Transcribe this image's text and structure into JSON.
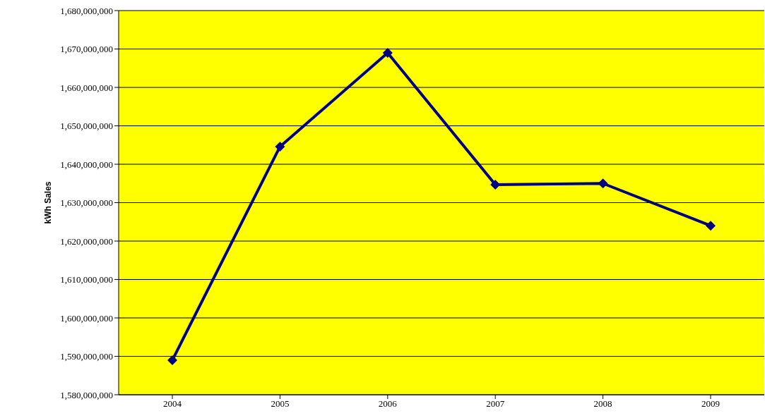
{
  "chart_data": {
    "type": "line",
    "ylabel": "kWh Sales",
    "categories": [
      "2004",
      "2005",
      "2006",
      "2007",
      "2008",
      "2009"
    ],
    "series": [
      {
        "color": "#000080",
        "values": [
          1589000000,
          1644600000,
          1669000000,
          1634700000,
          1635000000,
          1624000000
        ]
      }
    ],
    "ylim": [
      1580000000,
      1680000000
    ],
    "yticks": [
      {
        "value": 1580000000,
        "label": "1,580,000,000"
      },
      {
        "value": 1590000000,
        "label": "1,590,000,000"
      },
      {
        "value": 1600000000,
        "label": "1,600,000,000"
      },
      {
        "value": 1610000000,
        "label": "1,610,000,000"
      },
      {
        "value": 1620000000,
        "label": "1,620,000,000"
      },
      {
        "value": 1630000000,
        "label": "1,630,000,000"
      },
      {
        "value": 1640000000,
        "label": "1,640,000,000"
      },
      {
        "value": 1650000000,
        "label": "1,650,000,000"
      },
      {
        "value": 1660000000,
        "label": "1,660,000,000"
      },
      {
        "value": 1670000000,
        "label": "1,670,000,000"
      },
      {
        "value": 1680000000,
        "label": "1,680,000,000"
      }
    ],
    "grid": "y",
    "legend": false,
    "marker": "diamond",
    "line_style": "solid"
  }
}
